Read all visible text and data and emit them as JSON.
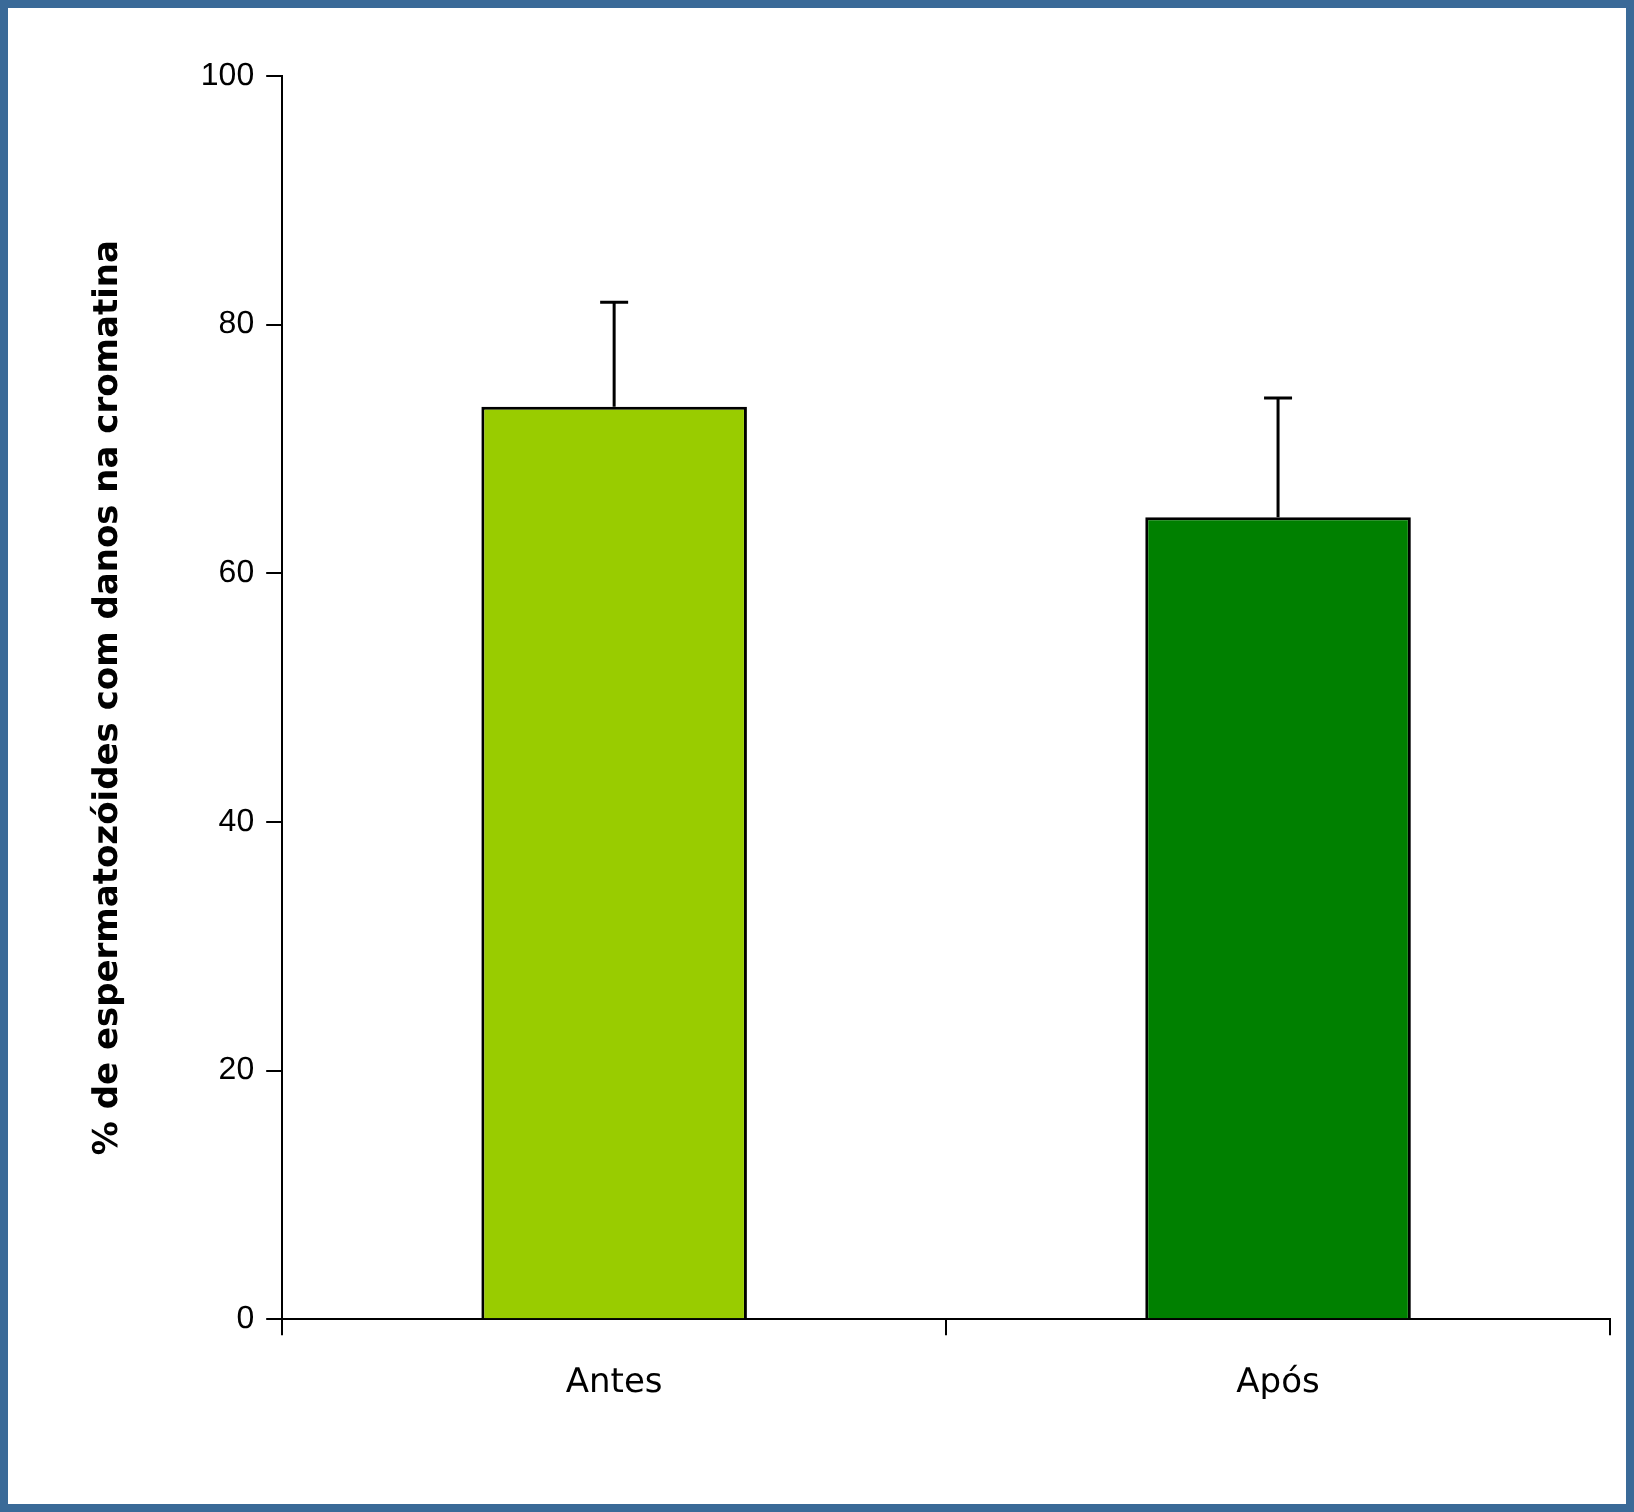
{
  "chart_data": {
    "type": "bar",
    "ylabel": "% de espermatozóides com danos na cromatina",
    "categories": [
      "Antes",
      "Após"
    ],
    "values": [
      73.4,
      64.5
    ],
    "colors": [
      "#99cc00",
      "#008000"
    ],
    "errors": [
      [
        73.4,
        81.8
      ],
      [
        64.5,
        74.1
      ]
    ],
    "ylim": [
      0,
      100
    ],
    "yticks": [
      0,
      20,
      40,
      60,
      80,
      100
    ],
    "grid": false,
    "legend": false
  }
}
